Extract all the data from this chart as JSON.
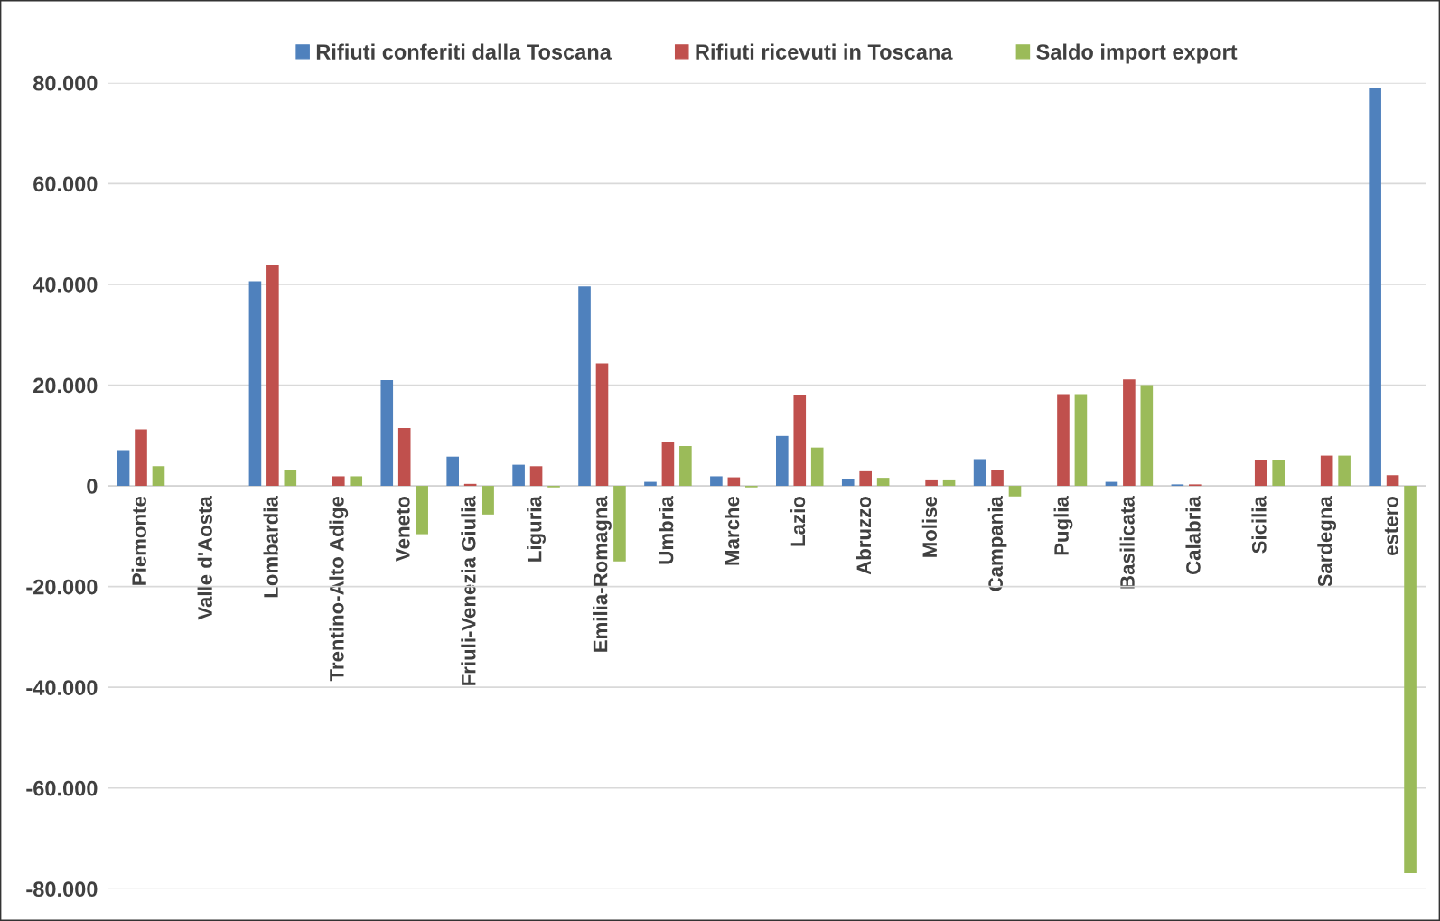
{
  "chart_data": {
    "type": "bar",
    "categories": [
      "Piemonte",
      "Valle d'Aosta",
      "Lombardia",
      "Trentino-Alto Adige",
      "Veneto",
      "Friuli-Venezia Giulia",
      "Liguria",
      "Emilia-Romagna",
      "Umbria",
      "Marche",
      "Lazio",
      "Abruzzo",
      "Molise",
      "Campania",
      "Puglia",
      "Basilicata",
      "Calabria",
      "Sicilia",
      "Sardegna",
      "estero"
    ],
    "series": [
      {
        "name": "Rifiuti conferiti dalla Toscana",
        "color": "#4f81bd",
        "values": [
          7100,
          0,
          40600,
          0,
          21000,
          5800,
          4200,
          39600,
          800,
          1900,
          9900,
          1400,
          0,
          5300,
          0,
          800,
          300,
          0,
          0,
          79000
        ]
      },
      {
        "name": "Rifiuti ricevuti in Toscana",
        "color": "#c0504d",
        "values": [
          11200,
          0,
          43900,
          1900,
          11500,
          400,
          3900,
          24300,
          8700,
          1700,
          18000,
          2900,
          1100,
          3200,
          18200,
          21100,
          300,
          5200,
          6000,
          2100
        ]
      },
      {
        "name": "Saldo import export",
        "color": "#9bbb59",
        "values": [
          3900,
          0,
          3200,
          1900,
          -9600,
          -5700,
          -300,
          -15000,
          7900,
          -300,
          7600,
          1600,
          1100,
          -2100,
          18200,
          20000,
          0,
          5200,
          6000,
          -76900
        ]
      }
    ],
    "ylim": [
      -80000,
      80000
    ],
    "yticks": [
      {
        "value": -80000,
        "label": "-80.000"
      },
      {
        "value": -60000,
        "label": "-60.000"
      },
      {
        "value": -40000,
        "label": "-40.000"
      },
      {
        "value": -20000,
        "label": "-20.000"
      },
      0,
      {
        "value": 20000,
        "label": "20.000"
      },
      {
        "value": 40000,
        "label": "40.000"
      },
      {
        "value": 60000,
        "label": "60.000"
      },
      {
        "value": 80000,
        "label": "80.000"
      }
    ],
    "grid": "y",
    "legend": "top"
  }
}
